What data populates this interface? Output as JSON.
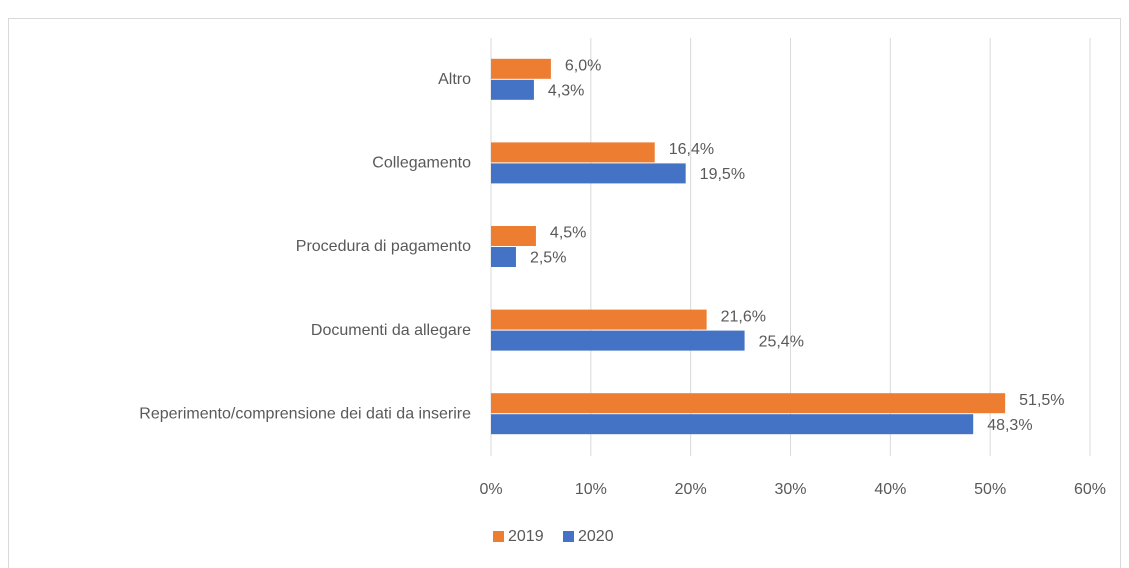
{
  "chart_data": {
    "type": "hbar",
    "categories": [
      "Altro",
      "Collegamento",
      "Procedura di pagamento",
      "Documenti da allegare",
      "Reperimento/comprensione dei dati da inserire"
    ],
    "series": [
      {
        "name": "2019",
        "color": "#ed7d31",
        "values": [
          6.0,
          16.4,
          4.5,
          21.6,
          51.5
        ],
        "value_labels": [
          "6,0%",
          "16,4%",
          "4,5%",
          "21,6%",
          "51,5%"
        ]
      },
      {
        "name": "2020",
        "color": "#4472c4",
        "values": [
          4.3,
          19.5,
          2.5,
          25.4,
          48.3
        ],
        "value_labels": [
          "4,3%",
          "19,5%",
          "2,5%",
          "25,4%",
          "48,3%"
        ]
      }
    ],
    "xlim": [
      0,
      60
    ],
    "xticks": [
      {
        "value": 0,
        "label": "0%"
      },
      {
        "value": 10,
        "label": "10%"
      },
      {
        "value": 20,
        "label": "20%"
      },
      {
        "value": 30,
        "label": "30%"
      },
      {
        "value": 40,
        "label": "40%"
      },
      {
        "value": 50,
        "label": "50%"
      },
      {
        "value": 60,
        "label": "60%"
      }
    ],
    "grid": true,
    "legend": "bottom"
  }
}
